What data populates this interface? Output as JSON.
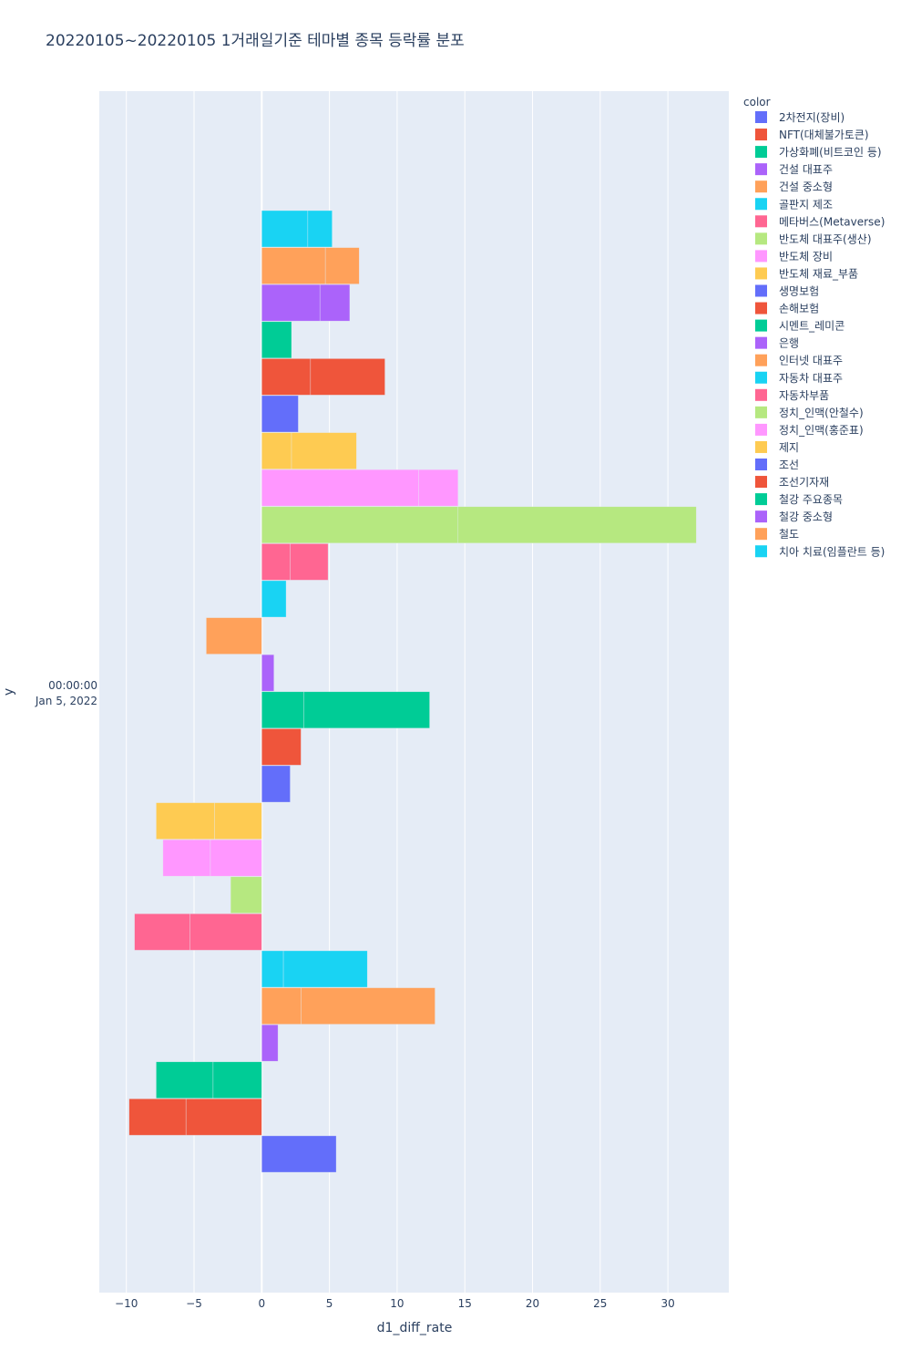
{
  "chart_data": {
    "type": "bar",
    "orientation": "horizontal",
    "barmode": "relative",
    "title": "20220105~20220105 1거래일기준 테마별 종목 등락률 분포",
    "xlabel": "d1_diff_rate",
    "ylabel": "y",
    "category_label_time": "00:00:00",
    "category_label_date": "Jan 5, 2022",
    "xlim": [
      -12,
      34.5
    ],
    "xticks": [
      -10,
      -5,
      0,
      5,
      10,
      15,
      20,
      25,
      30
    ],
    "xtick_labels": [
      "−10",
      "−5",
      "0",
      "5",
      "10",
      "15",
      "20",
      "25",
      "30"
    ],
    "grid": true,
    "legend": {
      "title": "color",
      "position": "right"
    },
    "series": [
      {
        "name": "2차전지(장비)",
        "color": "#636efa",
        "segments": [
          5.5
        ]
      },
      {
        "name": "NFT(대체불가토큰)",
        "color": "#EF553B",
        "segments": [
          -5.6,
          -4.2
        ]
      },
      {
        "name": "가상화폐(비트코인 등)",
        "color": "#00cc96",
        "segments": [
          -3.6,
          -4.2
        ]
      },
      {
        "name": "건설 대표주",
        "color": "#ab63fa",
        "segments": [
          1.2
        ]
      },
      {
        "name": "건설 중소형",
        "color": "#FFA15A",
        "segments": [
          2.9,
          9.9
        ]
      },
      {
        "name": "골판지 제조",
        "color": "#19d3f3",
        "segments": [
          1.6,
          6.2
        ]
      },
      {
        "name": "메타버스(Metaverse)",
        "color": "#FF6692",
        "segments": [
          -5.3,
          -4.1
        ]
      },
      {
        "name": "반도체 대표주(생산)",
        "color": "#B6E880",
        "segments": [
          -2.3
        ]
      },
      {
        "name": "반도체 장비",
        "color": "#FF97FF",
        "segments": [
          -3.8,
          -3.5
        ]
      },
      {
        "name": "반도체 재료_부품",
        "color": "#FECB52",
        "segments": [
          -3.5,
          -4.3
        ]
      },
      {
        "name": "생명보험",
        "color": "#636efa",
        "segments": [
          2.1
        ]
      },
      {
        "name": "손해보험",
        "color": "#EF553B",
        "segments": [
          2.9
        ]
      },
      {
        "name": "시멘트_레미콘",
        "color": "#00cc96",
        "segments": [
          3.1,
          9.3
        ]
      },
      {
        "name": "은행",
        "color": "#ab63fa",
        "segments": [
          0.9
        ]
      },
      {
        "name": "인터넷 대표주",
        "color": "#FFA15A",
        "segments": [
          -4.1
        ]
      },
      {
        "name": "자동차 대표주",
        "color": "#19d3f3",
        "segments": [
          1.8
        ]
      },
      {
        "name": "자동차부품",
        "color": "#FF6692",
        "segments": [
          2.1,
          2.8
        ]
      },
      {
        "name": "정치_인맥(안철수)",
        "color": "#B6E880",
        "segments": [
          14.5,
          17.6
        ]
      },
      {
        "name": "정치_인맥(홍준표)",
        "color": "#FF97FF",
        "segments": [
          11.6,
          2.9
        ]
      },
      {
        "name": "제지",
        "color": "#FECB52",
        "segments": [
          2.2,
          4.8
        ]
      },
      {
        "name": "조선",
        "color": "#636efa",
        "segments": [
          2.7
        ]
      },
      {
        "name": "조선기자재",
        "color": "#EF553B",
        "segments": [
          3.6,
          5.5
        ]
      },
      {
        "name": "철강 주요종목",
        "color": "#00cc96",
        "segments": [
          2.2
        ]
      },
      {
        "name": "철강 중소형",
        "color": "#ab63fa",
        "segments": [
          4.3,
          2.2
        ]
      },
      {
        "name": "철도",
        "color": "#FFA15A",
        "segments": [
          4.7,
          2.5
        ]
      },
      {
        "name": "치아 치료(임플란트 등)",
        "color": "#19d3f3",
        "segments": [
          3.4,
          1.8
        ]
      }
    ]
  }
}
